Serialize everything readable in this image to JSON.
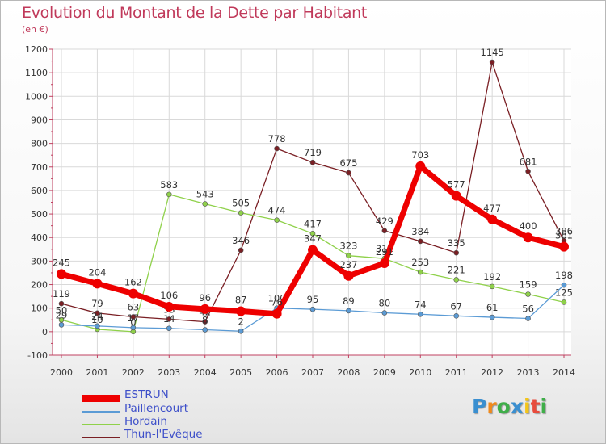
{
  "header": {
    "title": "Evolution du Montant de la Dette par Habitant",
    "subtitle": "(en €)"
  },
  "logo": {
    "letters": [
      "P",
      "r",
      "o",
      "x",
      "i",
      "t",
      "i"
    ],
    "colors": [
      "#3a8fd0",
      "#f08a1c",
      "#3fae49",
      "#3a8fd0",
      "#f3c51a",
      "#e84b3c",
      "#3fae49"
    ]
  },
  "chart_data": {
    "type": "line",
    "title": "Evolution du Montant de la Dette par Habitant",
    "subtitle": "(en €)",
    "xlabel": "",
    "ylabel": "",
    "ylim": [
      -100,
      1200
    ],
    "yticks": [
      "-100",
      "0",
      "100",
      "200",
      "300",
      "400",
      "500",
      "600",
      "700",
      "800",
      "900",
      "1000",
      "1100",
      "1200"
    ],
    "x": [
      "2000",
      "2001",
      "2002",
      "2003",
      "2004",
      "2005",
      "2006",
      "2007",
      "2008",
      "2009",
      "2010",
      "2011",
      "2012",
      "2013",
      "2014"
    ],
    "grid": true,
    "legend_position": "bottom-left",
    "series": [
      {
        "name": "Thun-l'Evêque",
        "color": "#7a1f24",
        "values": [
          119,
          79,
          63,
          53,
          42,
          null,
          778,
          719,
          675,
          429,
          384,
          335,
          1145,
          681,
          386
        ],
        "labels": [
          "119",
          "79",
          "63",
          "53",
          "42",
          "346",
          "778",
          "719",
          "675",
          "429",
          "384",
          "335",
          "1145",
          "681",
          "386"
        ],
        "extra_points": [
          {
            "x_index": 5,
            "value": 346
          }
        ]
      },
      {
        "name": "Hordain",
        "color": "#8fd14a",
        "values": [
          50,
          10,
          0,
          583,
          543,
          505,
          474,
          417,
          323,
          311,
          253,
          221,
          192,
          159,
          125
        ],
        "labels": [
          "50",
          "10",
          "0",
          "583",
          "543",
          "505",
          "474",
          "417",
          "323",
          "311",
          "253",
          "221",
          "192",
          "159",
          "125"
        ]
      },
      {
        "name": "Paillencourt",
        "color": "#5b9bd5",
        "values": [
          29,
          24,
          17,
          14,
          8,
          2,
          100,
          95,
          89,
          80,
          74,
          67,
          61,
          56,
          198
        ],
        "labels": [
          "29",
          "24",
          "17",
          "14",
          "8",
          "2",
          "100",
          "95",
          "89",
          "80",
          "74",
          "67",
          "61",
          "56",
          "198"
        ]
      },
      {
        "name": "ESTRUN",
        "color": "#ee0000",
        "values": [
          245,
          204,
          162,
          106,
          96,
          87,
          76,
          347,
          237,
          291,
          703,
          577,
          477,
          400,
          361
        ],
        "labels": [
          "245",
          "204",
          "162",
          "106",
          "96",
          "87",
          "76",
          "347",
          "237",
          "291",
          "703",
          "577",
          "477",
          "400",
          "361"
        ]
      }
    ],
    "legend": [
      "ESTRUN",
      "Paillencourt",
      "Hordain",
      "Thun-l'Evêque"
    ]
  }
}
